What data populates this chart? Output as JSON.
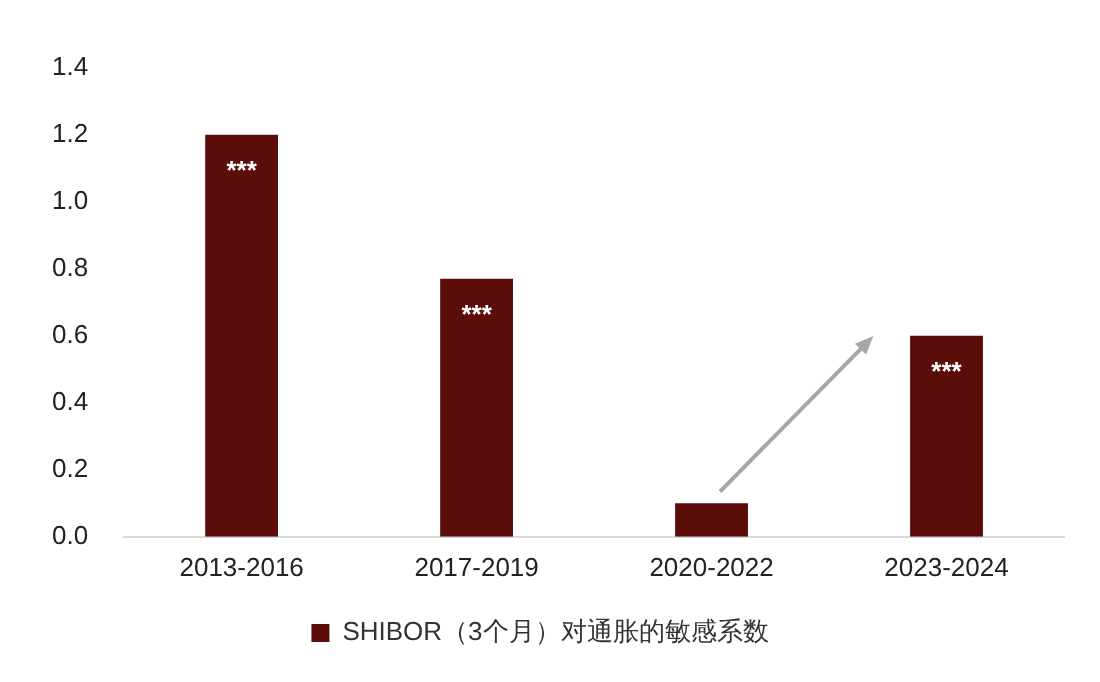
{
  "chart_data": {
    "type": "bar",
    "categories": [
      "2013-2016",
      "2017-2019",
      "2020-2022",
      "2023-2024"
    ],
    "series": [
      {
        "name": "SHIBOR（3个月）对通胀的敏感系数",
        "color": "#5a0d09",
        "values": [
          1.2,
          0.77,
          0.1,
          0.6
        ]
      }
    ],
    "ylim": [
      0,
      1.4
    ],
    "yticks": [
      {
        "value": 0,
        "label": "0.0"
      },
      0.2,
      0.4,
      0.6,
      0.8,
      {
        "value": 1,
        "label": "1.0"
      },
      1.2,
      1.4
    ],
    "annotations": [
      {
        "text": "***",
        "x": "2013-2016",
        "y": 1.2
      },
      {
        "text": "***",
        "x": "2017-2019",
        "y": 0.77
      },
      {
        "text": "***",
        "x": "2023-2024",
        "y": 0.6
      }
    ],
    "grid": false,
    "legend": "bottom"
  }
}
